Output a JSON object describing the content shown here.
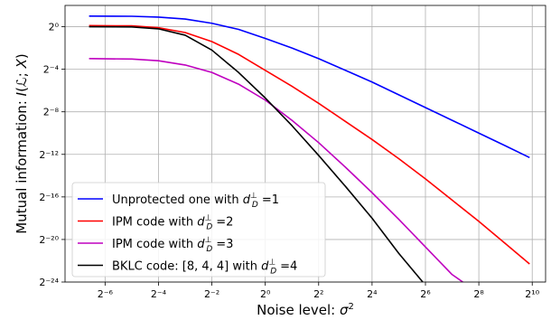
{
  "chart_data": {
    "type": "line",
    "title": "",
    "xlabel": "Noise level: σ²",
    "ylabel": "Mutual information: I(ℒ; X)",
    "xscale": "log2",
    "yscale": "log2",
    "xlim_log2": [
      -7.5,
      10.5
    ],
    "ylim_log2": [
      -24,
      2
    ],
    "xticks": [
      {
        "exp": -6,
        "label": "2⁻⁶"
      },
      {
        "exp": -4,
        "label": "2⁻⁴"
      },
      {
        "exp": -2,
        "label": "2⁻²"
      },
      {
        "exp": 0,
        "label": "2⁰"
      },
      {
        "exp": 2,
        "label": "2²"
      },
      {
        "exp": 4,
        "label": "2⁴"
      },
      {
        "exp": 6,
        "label": "2⁶"
      },
      {
        "exp": 8,
        "label": "2⁸"
      },
      {
        "exp": 10,
        "label": "2¹⁰"
      }
    ],
    "yticks": [
      {
        "exp": 0,
        "label": "2⁰"
      },
      {
        "exp": -4,
        "label": "2⁻⁴"
      },
      {
        "exp": -8,
        "label": "2⁻⁸"
      },
      {
        "exp": -12,
        "label": "2⁻¹²"
      },
      {
        "exp": -16,
        "label": "2⁻¹⁶"
      },
      {
        "exp": -20,
        "label": "2⁻²⁰"
      },
      {
        "exp": -24,
        "label": "2⁻²⁴"
      }
    ],
    "grid": true,
    "legend_position": "lower-left",
    "series": [
      {
        "name": "Unprotected one with d⊥_D =1",
        "legend_prefix": "Unprotected one with ",
        "legend_suffix": "=1",
        "color": "#0000ff",
        "log2_x": [
          -6.6,
          -5,
          -4,
          -3,
          -2,
          -1,
          0,
          1,
          2,
          3,
          4,
          5,
          6,
          7,
          8,
          9,
          9.9
        ],
        "log2_y": [
          1.0,
          0.98,
          0.9,
          0.72,
          0.32,
          -0.25,
          -1.1,
          -2.0,
          -3.0,
          -4.1,
          -5.2,
          -6.4,
          -7.6,
          -8.8,
          -10.0,
          -11.2,
          -12.3
        ]
      },
      {
        "name": "IPM code with d⊥_D =2",
        "legend_prefix": "IPM code with ",
        "legend_suffix": "=2",
        "color": "#ff0000",
        "log2_x": [
          -6.6,
          -5,
          -4,
          -3,
          -2,
          -1,
          0,
          1,
          2,
          3,
          4,
          5,
          6,
          7,
          8,
          9,
          9.9
        ],
        "log2_y": [
          0.1,
          0.08,
          -0.1,
          -0.55,
          -1.4,
          -2.6,
          -4.1,
          -5.6,
          -7.2,
          -8.9,
          -10.6,
          -12.4,
          -14.3,
          -16.3,
          -18.3,
          -20.4,
          -22.3
        ]
      },
      {
        "name": "IPM code with d⊥_D =3",
        "legend_prefix": "IPM code with ",
        "legend_suffix": "=3",
        "color": "#bf00bf",
        "log2_x": [
          -6.6,
          -5,
          -4,
          -3,
          -2,
          -1,
          0,
          1,
          2,
          3,
          4,
          5,
          6,
          7,
          7.4
        ],
        "log2_y": [
          -3.0,
          -3.04,
          -3.2,
          -3.6,
          -4.3,
          -5.4,
          -6.9,
          -8.8,
          -10.9,
          -13.2,
          -15.6,
          -18.1,
          -20.7,
          -23.3,
          -24.0
        ]
      },
      {
        "name": "BKLC code: [8, 4, 4] with d⊥_D =4",
        "legend_prefix": "BKLC code: [8, 4, 4] with ",
        "legend_suffix": "=4",
        "color": "#000000",
        "log2_x": [
          -6.6,
          -5,
          -4,
          -3,
          -2,
          -1,
          0,
          1,
          2,
          3,
          4,
          5,
          5.9
        ],
        "log2_y": [
          0.0,
          -0.02,
          -0.2,
          -0.8,
          -2.2,
          -4.3,
          -6.7,
          -9.3,
          -12.1,
          -15.0,
          -18.0,
          -21.3,
          -24.0
        ]
      }
    ]
  }
}
